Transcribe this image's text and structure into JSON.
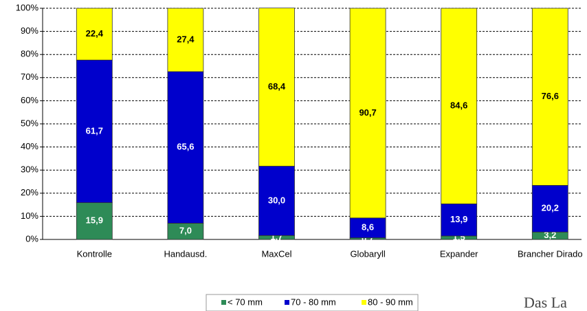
{
  "chart_data": {
    "type": "stacked-bar",
    "categories": [
      "Kontrolle",
      "Handausd.",
      "MaxCel",
      "Globaryll",
      "Expander",
      "Brancher Dirado"
    ],
    "series": [
      {
        "name": "< 70 mm",
        "color": "#2e8b57",
        "values": [
          15.9,
          7.0,
          1.7,
          0.7,
          1.5,
          3.2
        ],
        "value_labels": [
          "15,9",
          "7,0",
          "1,7",
          "0,7",
          "1,5",
          "3,2"
        ]
      },
      {
        "name": "70 - 80 mm",
        "color": "#0000cc",
        "values": [
          61.7,
          65.6,
          30.0,
          8.6,
          13.9,
          20.2
        ],
        "value_labels": [
          "61,7",
          "65,6",
          "30,0",
          "8,6",
          "13,9",
          "20,2"
        ]
      },
      {
        "name": "80 - 90 mm",
        "color": "#ffff00",
        "values": [
          22.4,
          27.4,
          68.4,
          90.7,
          84.6,
          76.6
        ],
        "value_labels": [
          "22,4",
          "27,4",
          "68,4",
          "90,7",
          "84,6",
          "76,6"
        ]
      }
    ],
    "ylim": [
      0,
      100
    ],
    "yticks": [
      {
        "value": 0,
        "label": "0%"
      },
      {
        "value": 10,
        "label": "10%"
      },
      {
        "value": 20,
        "label": "20%"
      },
      {
        "value": 30,
        "label": "30%"
      },
      {
        "value": 40,
        "label": "40%"
      },
      {
        "value": 50,
        "label": "50%"
      },
      {
        "value": 60,
        "label": "60%"
      },
      {
        "value": 70,
        "label": "70%"
      },
      {
        "value": 80,
        "label": "80%"
      },
      {
        "value": 90,
        "label": "90%"
      },
      {
        "value": 100,
        "label": "100%"
      }
    ],
    "grid": true,
    "legend": "bottom"
  },
  "logo": "Das La"
}
